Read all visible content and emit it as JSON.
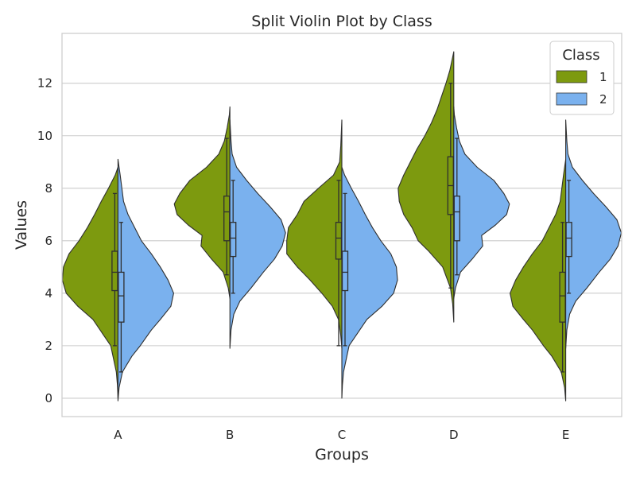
{
  "chart_data": {
    "type": "split-violin",
    "title": "Split Violin Plot by Class",
    "xlabel": "Groups",
    "ylabel": "Values",
    "ylim": [
      -0.7,
      13.9
    ],
    "yticks": [
      0,
      2,
      4,
      6,
      8,
      10,
      12
    ],
    "grid": true,
    "legend": {
      "title": "Class",
      "position": "top-right"
    },
    "categories": [
      "A",
      "B",
      "C",
      "D",
      "E"
    ],
    "series": [
      {
        "name": "1",
        "color": "#7d9a0f",
        "groups": [
          {
            "min": 0.0,
            "max": 8.8,
            "whisker_low": 2.0,
            "q1": 4.1,
            "median": 4.8,
            "q3": 5.6,
            "whisker_high": 7.8,
            "profile": [
              [
                0.0,
                0.0
              ],
              [
                0.5,
                0.01
              ],
              [
                1.0,
                0.03
              ],
              [
                2.0,
                0.13
              ],
              [
                3.0,
                0.45
              ],
              [
                3.5,
                0.72
              ],
              [
                4.0,
                0.93
              ],
              [
                4.5,
                1.0
              ],
              [
                5.0,
                0.98
              ],
              [
                5.5,
                0.88
              ],
              [
                6.0,
                0.7
              ],
              [
                6.5,
                0.55
              ],
              [
                7.0,
                0.42
              ],
              [
                7.5,
                0.3
              ],
              [
                8.0,
                0.17
              ],
              [
                8.5,
                0.05
              ],
              [
                8.8,
                0.0
              ]
            ]
          },
          {
            "min": 3.8,
            "max": 11.1,
            "whisker_low": 4.7,
            "q1": 6.0,
            "median": 7.1,
            "q3": 7.7,
            "whisker_high": 9.9,
            "profile": [
              [
                3.8,
                0.0
              ],
              [
                4.2,
                0.03
              ],
              [
                4.8,
                0.12
              ],
              [
                5.3,
                0.33
              ],
              [
                5.8,
                0.52
              ],
              [
                6.2,
                0.5
              ],
              [
                6.6,
                0.75
              ],
              [
                7.0,
                0.95
              ],
              [
                7.4,
                1.0
              ],
              [
                7.8,
                0.9
              ],
              [
                8.3,
                0.72
              ],
              [
                8.8,
                0.42
              ],
              [
                9.3,
                0.2
              ],
              [
                9.8,
                0.1
              ],
              [
                10.3,
                0.05
              ],
              [
                10.8,
                0.01
              ],
              [
                11.1,
                0.0
              ]
            ]
          },
          {
            "min": 1.9,
            "max": 10.6,
            "whisker_low": 2.0,
            "q1": 5.3,
            "median": 6.1,
            "q3": 6.7,
            "whisker_high": 8.3,
            "profile": [
              [
                1.9,
                0.0
              ],
              [
                2.4,
                0.02
              ],
              [
                3.0,
                0.06
              ],
              [
                3.5,
                0.17
              ],
              [
                4.0,
                0.36
              ],
              [
                4.5,
                0.57
              ],
              [
                5.0,
                0.8
              ],
              [
                5.5,
                0.99
              ],
              [
                6.0,
                0.99
              ],
              [
                6.5,
                0.96
              ],
              [
                7.0,
                0.8
              ],
              [
                7.5,
                0.68
              ],
              [
                8.0,
                0.42
              ],
              [
                8.5,
                0.15
              ],
              [
                9.0,
                0.04
              ],
              [
                9.6,
                0.02
              ],
              [
                10.1,
                0.01
              ],
              [
                10.6,
                0.0
              ]
            ]
          },
          {
            "min": 2.9,
            "max": 13.2,
            "whisker_low": 4.2,
            "q1": 7.0,
            "median": 8.1,
            "q3": 9.2,
            "whisker_high": 12.0,
            "profile": [
              [
                2.9,
                0.0
              ],
              [
                3.6,
                0.02
              ],
              [
                4.2,
                0.06
              ],
              [
                5.0,
                0.2
              ],
              [
                5.6,
                0.45
              ],
              [
                6.0,
                0.64
              ],
              [
                6.5,
                0.75
              ],
              [
                7.0,
                0.9
              ],
              [
                7.5,
                0.98
              ],
              [
                8.0,
                1.0
              ],
              [
                8.5,
                0.9
              ],
              [
                9.0,
                0.78
              ],
              [
                9.5,
                0.66
              ],
              [
                10.0,
                0.52
              ],
              [
                10.5,
                0.4
              ],
              [
                11.0,
                0.3
              ],
              [
                11.5,
                0.22
              ],
              [
                12.0,
                0.14
              ],
              [
                12.5,
                0.07
              ],
              [
                13.0,
                0.02
              ],
              [
                13.2,
                0.0
              ]
            ]
          },
          {
            "min": -0.1,
            "max": 9.1,
            "whisker_low": 1.0,
            "q1": 2.9,
            "median": 3.9,
            "q3": 4.8,
            "whisker_high": 6.7,
            "profile": [
              [
                -0.1,
                0.0
              ],
              [
                0.4,
                0.02
              ],
              [
                1.0,
                0.08
              ],
              [
                1.6,
                0.25
              ],
              [
                2.0,
                0.4
              ],
              [
                2.6,
                0.6
              ],
              [
                3.0,
                0.76
              ],
              [
                3.5,
                0.95
              ],
              [
                4.0,
                1.0
              ],
              [
                4.5,
                0.9
              ],
              [
                5.0,
                0.76
              ],
              [
                5.5,
                0.6
              ],
              [
                6.0,
                0.42
              ],
              [
                6.5,
                0.3
              ],
              [
                7.0,
                0.18
              ],
              [
                7.5,
                0.1
              ],
              [
                8.0,
                0.07
              ],
              [
                8.5,
                0.04
              ],
              [
                9.1,
                0.0
              ]
            ]
          }
        ]
      },
      {
        "name": "2",
        "color": "#7ab1ee",
        "groups": [
          {
            "min": -0.1,
            "max": 9.1,
            "whisker_low": 1.0,
            "q1": 2.9,
            "median": 3.9,
            "q3": 4.8,
            "whisker_high": 6.7,
            "profile": [
              [
                -0.1,
                0.0
              ],
              [
                0.4,
                0.02
              ],
              [
                1.0,
                0.08
              ],
              [
                1.6,
                0.25
              ],
              [
                2.0,
                0.4
              ],
              [
                2.6,
                0.6
              ],
              [
                3.0,
                0.76
              ],
              [
                3.5,
                0.95
              ],
              [
                4.0,
                1.0
              ],
              [
                4.5,
                0.9
              ],
              [
                5.0,
                0.76
              ],
              [
                5.5,
                0.6
              ],
              [
                6.0,
                0.42
              ],
              [
                6.5,
                0.3
              ],
              [
                7.0,
                0.18
              ],
              [
                7.5,
                0.1
              ],
              [
                8.0,
                0.07
              ],
              [
                8.5,
                0.04
              ],
              [
                9.1,
                0.0
              ]
            ]
          },
          {
            "min": 1.9,
            "max": 10.6,
            "whisker_low": 4.0,
            "q1": 5.4,
            "median": 6.1,
            "q3": 6.7,
            "whisker_high": 8.3,
            "profile": [
              [
                1.9,
                0.0
              ],
              [
                2.6,
                0.02
              ],
              [
                3.2,
                0.07
              ],
              [
                3.7,
                0.18
              ],
              [
                4.2,
                0.38
              ],
              [
                4.8,
                0.6
              ],
              [
                5.3,
                0.8
              ],
              [
                5.8,
                0.94
              ],
              [
                6.3,
                1.0
              ],
              [
                6.8,
                0.92
              ],
              [
                7.3,
                0.72
              ],
              [
                7.8,
                0.5
              ],
              [
                8.3,
                0.3
              ],
              [
                8.8,
                0.12
              ],
              [
                9.3,
                0.04
              ],
              [
                9.8,
                0.02
              ],
              [
                10.2,
                0.01
              ],
              [
                10.6,
                0.0
              ]
            ]
          },
          {
            "min": 0.0,
            "max": 8.8,
            "whisker_low": 2.0,
            "q1": 4.1,
            "median": 4.8,
            "q3": 5.6,
            "whisker_high": 7.8,
            "profile": [
              [
                0.0,
                0.0
              ],
              [
                0.5,
                0.01
              ],
              [
                1.0,
                0.03
              ],
              [
                2.0,
                0.13
              ],
              [
                3.0,
                0.45
              ],
              [
                3.5,
                0.72
              ],
              [
                4.0,
                0.93
              ],
              [
                4.5,
                1.0
              ],
              [
                5.0,
                0.98
              ],
              [
                5.5,
                0.88
              ],
              [
                6.0,
                0.7
              ],
              [
                6.5,
                0.55
              ],
              [
                7.0,
                0.42
              ],
              [
                7.5,
                0.3
              ],
              [
                8.0,
                0.17
              ],
              [
                8.5,
                0.05
              ],
              [
                8.8,
                0.0
              ]
            ]
          },
          {
            "min": 3.8,
            "max": 11.1,
            "whisker_low": 4.7,
            "q1": 6.0,
            "median": 7.1,
            "q3": 7.7,
            "whisker_high": 9.9,
            "profile": [
              [
                3.8,
                0.0
              ],
              [
                4.2,
                0.03
              ],
              [
                4.8,
                0.12
              ],
              [
                5.3,
                0.33
              ],
              [
                5.8,
                0.52
              ],
              [
                6.2,
                0.5
              ],
              [
                6.6,
                0.75
              ],
              [
                7.0,
                0.95
              ],
              [
                7.4,
                1.0
              ],
              [
                7.8,
                0.9
              ],
              [
                8.3,
                0.72
              ],
              [
                8.8,
                0.42
              ],
              [
                9.3,
                0.2
              ],
              [
                9.8,
                0.1
              ],
              [
                10.3,
                0.05
              ],
              [
                10.8,
                0.01
              ],
              [
                11.1,
                0.0
              ]
            ]
          },
          {
            "min": 1.9,
            "max": 10.6,
            "whisker_low": 4.0,
            "q1": 5.4,
            "median": 6.1,
            "q3": 6.7,
            "whisker_high": 8.3,
            "profile": [
              [
                1.9,
                0.0
              ],
              [
                2.6,
                0.02
              ],
              [
                3.2,
                0.07
              ],
              [
                3.7,
                0.18
              ],
              [
                4.2,
                0.38
              ],
              [
                4.8,
                0.6
              ],
              [
                5.3,
                0.8
              ],
              [
                5.8,
                0.94
              ],
              [
                6.3,
                1.0
              ],
              [
                6.8,
                0.92
              ],
              [
                7.3,
                0.72
              ],
              [
                7.8,
                0.5
              ],
              [
                8.3,
                0.3
              ],
              [
                8.8,
                0.12
              ],
              [
                9.3,
                0.04
              ],
              [
                9.8,
                0.02
              ],
              [
                10.2,
                0.01
              ],
              [
                10.6,
                0.0
              ]
            ]
          }
        ]
      }
    ]
  }
}
